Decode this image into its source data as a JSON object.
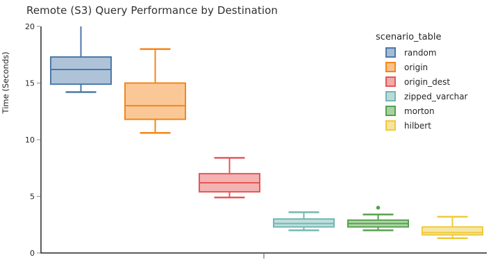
{
  "chart_data": {
    "type": "boxplot",
    "title": "Remote (S3) Query Performance by Destination",
    "ylabel": "Time (Seconds)",
    "xlabel": "",
    "ylim": [
      0,
      20
    ],
    "yticks": [
      0,
      5,
      10,
      15,
      20
    ],
    "grid": false,
    "legend_title": "scenario_table",
    "legend_position": "top-right",
    "axis_color": "#24272b",
    "tick_color": "#888888",
    "text_color": "#262626",
    "series": [
      {
        "name": "random",
        "color": "#4c78a8",
        "min": 14.2,
        "q1": 14.9,
        "median": 16.2,
        "q3": 17.3,
        "max": 20.0,
        "outliers": []
      },
      {
        "name": "origin",
        "color": "#f58518",
        "min": 10.6,
        "q1": 11.8,
        "median": 13.0,
        "q3": 15.0,
        "max": 18.0,
        "outliers": []
      },
      {
        "name": "origin_dest",
        "color": "#e45756",
        "min": 4.9,
        "q1": 5.4,
        "median": 6.2,
        "q3": 7.0,
        "max": 8.4,
        "outliers": []
      },
      {
        "name": "zipped_varchar",
        "color": "#72b7b2",
        "min": 2.0,
        "q1": 2.3,
        "median": 2.6,
        "q3": 3.0,
        "max": 3.6,
        "outliers": []
      },
      {
        "name": "morton",
        "color": "#54a24b",
        "min": 2.0,
        "q1": 2.3,
        "median": 2.6,
        "q3": 2.9,
        "max": 3.4,
        "outliers": [
          4.0
        ]
      },
      {
        "name": "hilbert",
        "color": "#eeca3b",
        "min": 1.3,
        "q1": 1.6,
        "median": 1.8,
        "q3": 2.3,
        "max": 3.2,
        "outliers": []
      }
    ]
  }
}
